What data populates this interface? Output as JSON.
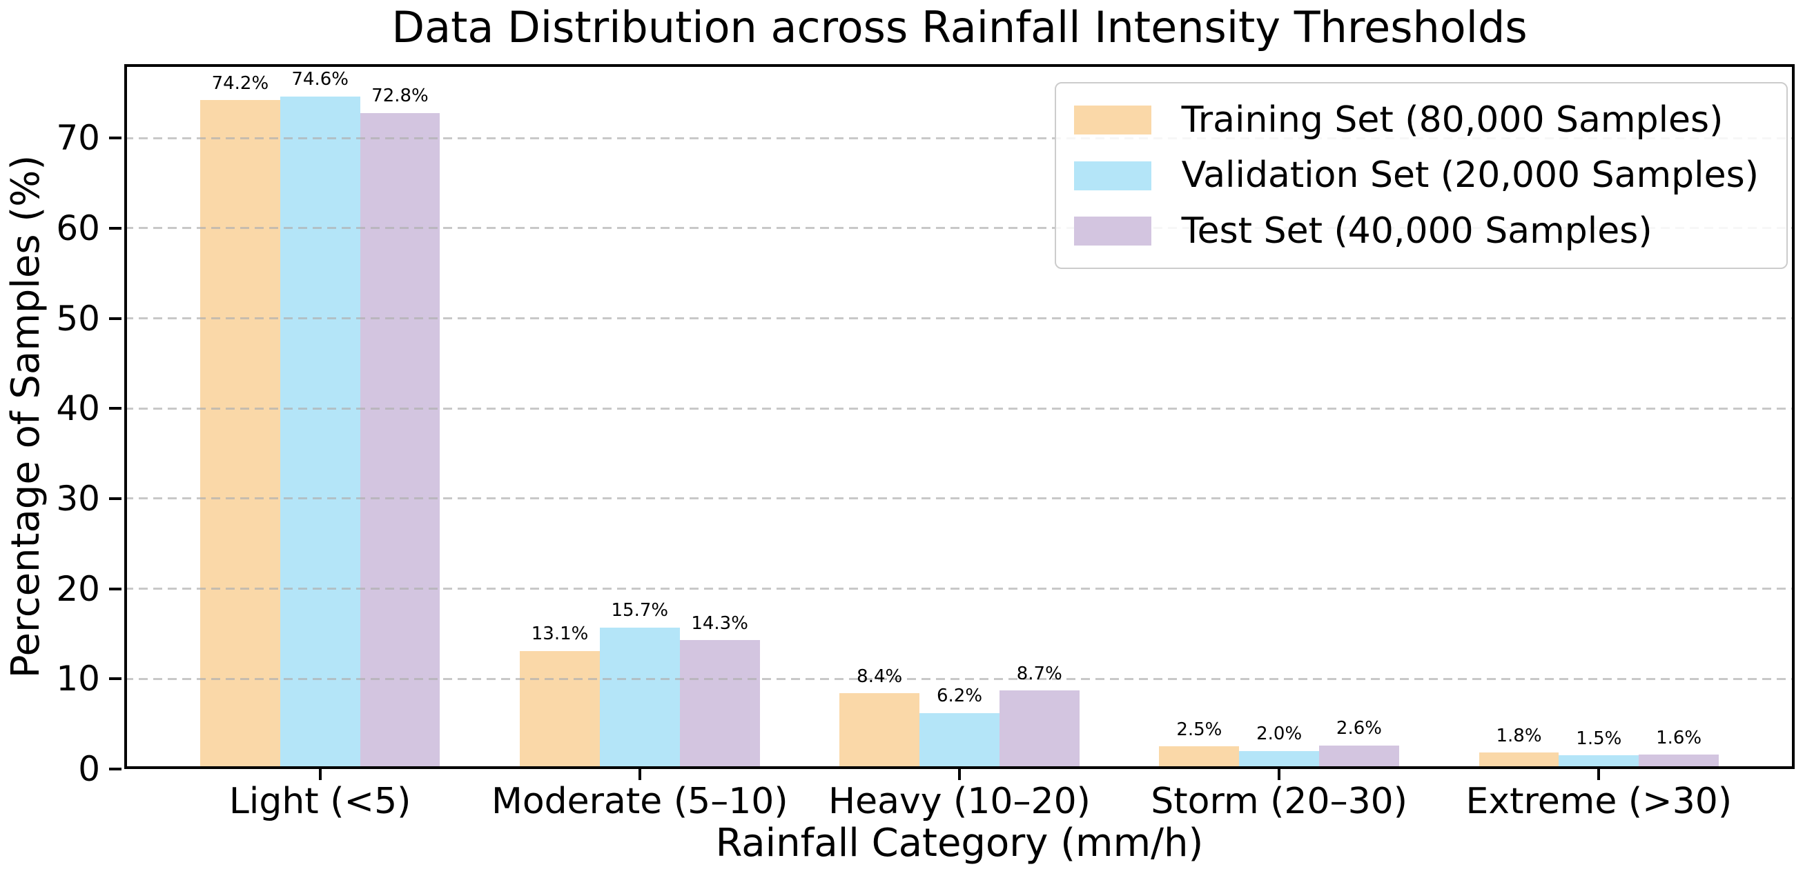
{
  "chart_data": {
    "type": "bar",
    "title": "Data Distribution across Rainfall Intensity Thresholds",
    "xlabel": "Rainfall Category (mm/h)",
    "ylabel": "Percentage of Samples (%)",
    "categories": [
      "Light (<5)",
      "Moderate (5–10)",
      "Heavy (10–20)",
      "Storm (20–30)",
      "Extreme (>30)"
    ],
    "series": [
      {
        "name": "Training Set (80,000 Samples)",
        "color": "#FAD8A8",
        "values": [
          74.2,
          13.1,
          8.4,
          2.5,
          1.8
        ]
      },
      {
        "name": "Validation Set (20,000 Samples)",
        "color": "#B4E5F8",
        "values": [
          74.6,
          15.7,
          6.2,
          2.0,
          1.5
        ]
      },
      {
        "name": "Test Set (40,000 Samples)",
        "color": "#D3C5E0",
        "values": [
          72.8,
          14.3,
          8.7,
          2.6,
          1.6
        ]
      }
    ],
    "yticks": [
      0,
      10,
      20,
      30,
      40,
      50,
      60,
      70
    ],
    "ylim": [
      0,
      78.2
    ],
    "xlim": [
      -0.6125,
      4.6125
    ],
    "bar_width": 0.25,
    "grid": {
      "axis": "y",
      "style": "dashed"
    },
    "legend_position": "upper right",
    "value_labels": {
      "suffix": "%",
      "decimals": 1
    }
  },
  "colors": {
    "grid": "rgba(176,176,176,0.7)",
    "spine": "#000000",
    "legend_border": "#CCCCCC",
    "background": "#FFFFFF",
    "text": "#000000"
  }
}
